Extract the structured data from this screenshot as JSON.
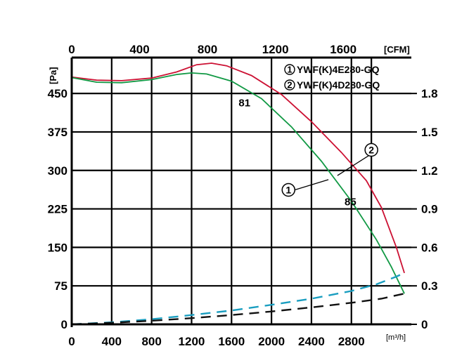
{
  "chart_data": {
    "type": "line",
    "title": "",
    "x_axis_bottom": {
      "unit": "[m³/h]",
      "ticks": [
        0,
        400,
        800,
        1200,
        1600,
        2000,
        2400,
        2800
      ],
      "range": [
        0,
        3400
      ]
    },
    "x_axis_top": {
      "unit": "[CFM]",
      "ticks": [
        0,
        400,
        800,
        1200,
        1600
      ]
    },
    "y_axis_left": {
      "unit": "[Pa]",
      "ticks": [
        0,
        75,
        150,
        225,
        300,
        375,
        450
      ],
      "range": [
        0,
        520
      ]
    },
    "y_axis_right": {
      "ticks": [
        "0",
        "0.3",
        "0.6",
        "0.9",
        "1.2",
        "1.5",
        "1.8"
      ]
    },
    "grid": true,
    "legend": {
      "placement": "top-right",
      "entries": [
        {
          "marker": "1",
          "label": "YWF(K)4E280-GQ"
        },
        {
          "marker": "2",
          "label": "YWF(K)4D280-GQ"
        }
      ]
    },
    "series": [
      {
        "marker": "1",
        "color": "#cc1133",
        "style": "solid",
        "points": [
          [
            0,
            482
          ],
          [
            250,
            476
          ],
          [
            500,
            475
          ],
          [
            800,
            480
          ],
          [
            1050,
            492
          ],
          [
            1250,
            506
          ],
          [
            1400,
            509
          ],
          [
            1550,
            504
          ],
          [
            1800,
            485
          ],
          [
            2100,
            448
          ],
          [
            2400,
            395
          ],
          [
            2700,
            335
          ],
          [
            2950,
            280
          ],
          [
            3100,
            228
          ],
          [
            3250,
            150
          ],
          [
            3330,
            100
          ]
        ]
      },
      {
        "marker": "2",
        "color": "#119944",
        "style": "solid",
        "points": [
          [
            0,
            481
          ],
          [
            250,
            472
          ],
          [
            500,
            471
          ],
          [
            800,
            477
          ],
          [
            1050,
            487
          ],
          [
            1200,
            490
          ],
          [
            1350,
            488
          ],
          [
            1600,
            474
          ],
          [
            1900,
            440
          ],
          [
            2200,
            385
          ],
          [
            2500,
            318
          ],
          [
            2800,
            240
          ],
          [
            3050,
            165
          ],
          [
            3200,
            112
          ],
          [
            3330,
            60
          ]
        ]
      },
      {
        "marker": "1",
        "color": "#1a9ec0",
        "style": "dashed",
        "points": [
          [
            0,
            0
          ],
          [
            400,
            4
          ],
          [
            800,
            10
          ],
          [
            1200,
            18
          ],
          [
            1600,
            27
          ],
          [
            2000,
            38
          ],
          [
            2400,
            50
          ],
          [
            2800,
            65
          ],
          [
            3050,
            78
          ],
          [
            3250,
            93
          ],
          [
            3330,
            100
          ]
        ]
      },
      {
        "marker": "2",
        "color": "#111111",
        "style": "dashed",
        "points": [
          [
            0,
            0
          ],
          [
            400,
            3
          ],
          [
            800,
            7
          ],
          [
            1200,
            12
          ],
          [
            1600,
            18
          ],
          [
            2000,
            25
          ],
          [
            2400,
            33
          ],
          [
            2800,
            42
          ],
          [
            3100,
            50
          ],
          [
            3330,
            60
          ]
        ]
      }
    ],
    "efficiency_labels": [
      {
        "text": "81",
        "x": 1730,
        "y": 425
      },
      {
        "text": "85",
        "x": 2790,
        "y": 232
      }
    ],
    "markers": [
      {
        "text": "1",
        "x": 2170,
        "y": 262,
        "pointer": [
          2570,
          282
        ]
      },
      {
        "text": "2",
        "x": 3000,
        "y": 340,
        "pointer": [
          2660,
          290
        ]
      }
    ]
  }
}
